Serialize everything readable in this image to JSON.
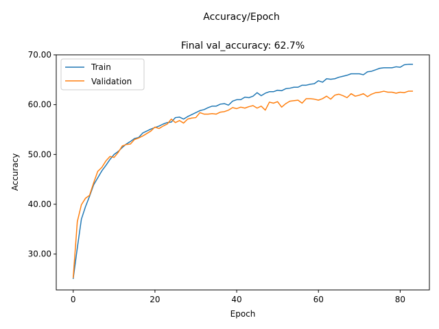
{
  "chart_data": {
    "type": "line",
    "suptitle": "Accuracy/Epoch",
    "title": "Final val_accuracy: 62.7%",
    "xlabel": "Epoch",
    "ylabel": "Accuracy",
    "xlim": [
      -4.15,
      87.15
    ],
    "ylim": [
      22.8,
      70.0
    ],
    "xticks": [
      0,
      20,
      40,
      60,
      80
    ],
    "xtick_labels": [
      "0",
      "20",
      "40",
      "60",
      "80"
    ],
    "yticks": [
      30,
      40,
      50,
      60,
      70
    ],
    "ytick_labels": [
      "30.00",
      "40.00",
      "50.00",
      "60.00",
      "70.00"
    ],
    "grid": false,
    "legend_position": "top-left",
    "series": [
      {
        "name": "Train",
        "color": "#1f77b4",
        "values": [
          25.1,
          31.2,
          37.0,
          39.5,
          41.6,
          43.9,
          45.3,
          46.7,
          47.8,
          49.0,
          50.0,
          50.6,
          51.4,
          52.1,
          52.6,
          53.2,
          53.4,
          54.3,
          54.7,
          55.1,
          55.4,
          55.7,
          56.1,
          56.4,
          56.5,
          57.4,
          57.5,
          57.1,
          57.6,
          58.0,
          58.4,
          58.8,
          59.0,
          59.4,
          59.7,
          59.7,
          60.1,
          60.2,
          59.9,
          60.7,
          61.0,
          61.0,
          61.5,
          61.4,
          61.7,
          62.4,
          61.8,
          62.3,
          62.6,
          62.6,
          62.9,
          62.8,
          63.2,
          63.3,
          63.5,
          63.5,
          63.9,
          63.9,
          64.1,
          64.2,
          64.8,
          64.5,
          65.2,
          65.1,
          65.2,
          65.5,
          65.7,
          65.9,
          66.2,
          66.2,
          66.2,
          66.0,
          66.6,
          66.7,
          67.0,
          67.3,
          67.4,
          67.4,
          67.4,
          67.6,
          67.5,
          68.0,
          68.1,
          68.1
        ]
      },
      {
        "name": "Validation",
        "color": "#ff7f0e",
        "values": [
          25.3,
          36.5,
          39.9,
          41.2,
          41.8,
          44.3,
          46.6,
          47.4,
          48.7,
          49.6,
          49.4,
          50.4,
          51.7,
          52.0,
          52.1,
          53.0,
          53.3,
          53.7,
          54.2,
          54.7,
          55.5,
          55.2,
          55.7,
          56.1,
          57.1,
          56.4,
          56.8,
          56.3,
          57.1,
          57.3,
          57.4,
          58.4,
          58.1,
          58.1,
          58.2,
          58.1,
          58.5,
          58.6,
          58.9,
          59.4,
          59.2,
          59.5,
          59.3,
          59.6,
          59.8,
          59.3,
          59.7,
          58.9,
          60.5,
          60.3,
          60.6,
          59.5,
          60.2,
          60.7,
          60.8,
          60.9,
          60.3,
          61.2,
          61.2,
          61.1,
          60.9,
          61.2,
          61.7,
          61.1,
          61.9,
          62.1,
          61.8,
          61.4,
          62.2,
          61.7,
          61.9,
          62.2,
          61.6,
          62.1,
          62.4,
          62.5,
          62.7,
          62.5,
          62.5,
          62.3,
          62.5,
          62.4,
          62.7,
          62.7
        ]
      }
    ]
  }
}
